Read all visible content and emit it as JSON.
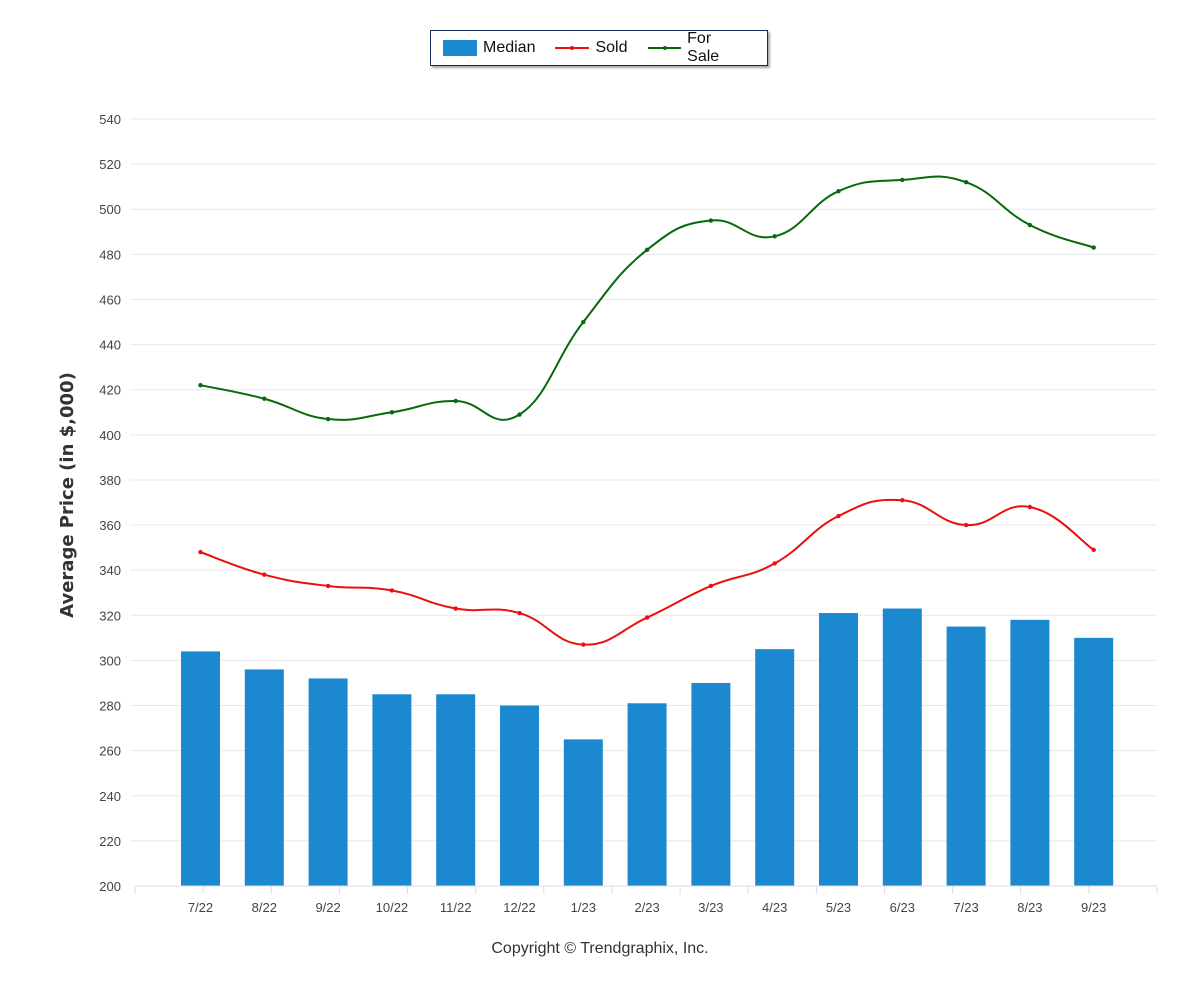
{
  "legend": {
    "median": "Median",
    "sold": "Sold",
    "for_sale": "For Sale"
  },
  "copyright": "Copyright © Trendgraphix, Inc.",
  "colors": {
    "median": "#1c88d0",
    "sold": "#e8110f",
    "for_sale": "#07680d",
    "grid": "#e8e8e8",
    "tick_text": "#444444"
  },
  "chart_data": {
    "type": "bar",
    "ylabel": "Average Price (in $,000)",
    "xlabel": "",
    "ylim": [
      200,
      540
    ],
    "yticks": [
      200,
      220,
      240,
      260,
      280,
      300,
      320,
      340,
      360,
      380,
      400,
      420,
      440,
      460,
      480,
      500,
      520,
      540
    ],
    "grid": true,
    "legend_position": "top-center",
    "categories": [
      "7/22",
      "8/22",
      "9/22",
      "10/22",
      "11/22",
      "12/22",
      "1/23",
      "2/23",
      "3/23",
      "4/23",
      "5/23",
      "6/23",
      "7/23",
      "8/23",
      "9/23"
    ],
    "series": [
      {
        "name": "Median",
        "type": "bar",
        "values": [
          304,
          296,
          292,
          285,
          285,
          280,
          265,
          281,
          290,
          305,
          321,
          323,
          315,
          318,
          310
        ]
      },
      {
        "name": "Sold",
        "type": "line",
        "values": [
          348,
          338,
          333,
          331,
          323,
          321,
          307,
          319,
          333,
          343,
          364,
          371,
          360,
          368,
          349
        ]
      },
      {
        "name": "For Sale",
        "type": "line",
        "values": [
          422,
          416,
          407,
          410,
          415,
          409,
          450,
          482,
          495,
          488,
          508,
          513,
          512,
          493,
          483
        ]
      }
    ]
  }
}
